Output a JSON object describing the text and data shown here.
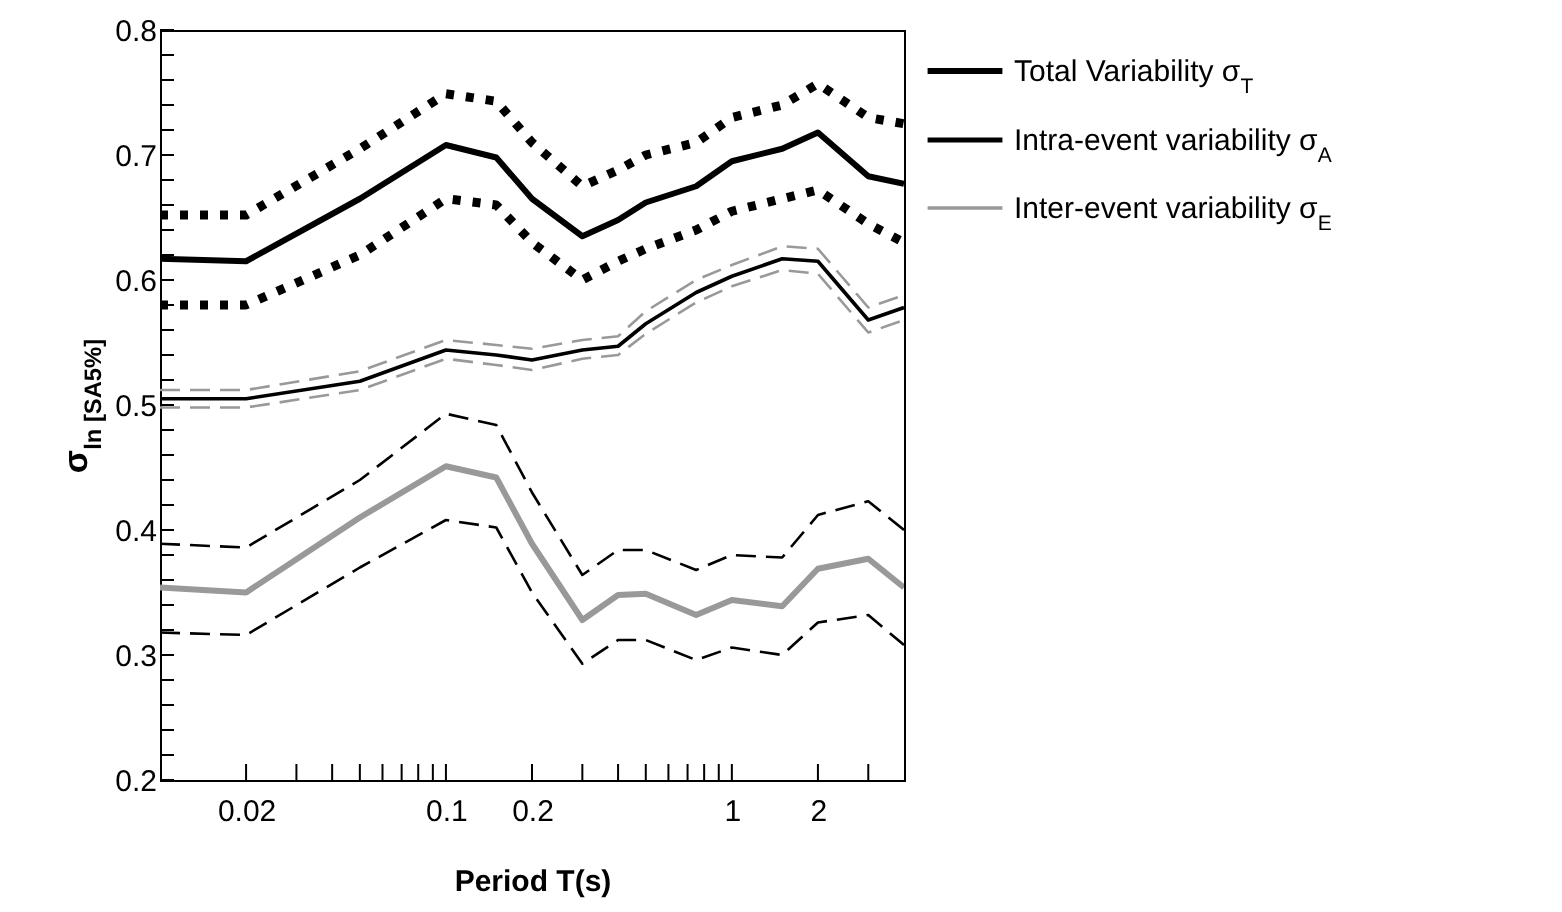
{
  "chart_data": {
    "type": "line",
    "xlabel": "Period T(s)",
    "ylabel": "σ$_{ln [SA5%]}$",
    "x": [
      0.01,
      0.02,
      0.05,
      0.1,
      0.15,
      0.2,
      0.3,
      0.4,
      0.5,
      0.75,
      1,
      1.5,
      2,
      3,
      4
    ],
    "series": [
      {
        "name": "Total Variability σ$_{T}$",
        "color": "#000000",
        "values": [
          0.617,
          0.615,
          0.665,
          0.708,
          0.698,
          0.665,
          0.635,
          0.648,
          0.662,
          0.675,
          0.695,
          0.705,
          0.718,
          0.683,
          0.677
        ]
      },
      {
        "name": "Intra-event variability σ$_{A}$",
        "color": "#000000",
        "values": [
          0.505,
          0.505,
          0.519,
          0.544,
          0.54,
          0.536,
          0.544,
          0.547,
          0.565,
          0.59,
          0.603,
          0.617,
          0.615,
          0.568,
          0.578
        ]
      },
      {
        "name": "Inter-event variability σ$_{E}$",
        "color": "#999999",
        "values": [
          0.354,
          0.35,
          0.41,
          0.451,
          0.442,
          0.389,
          0.328,
          0.348,
          0.349,
          0.332,
          0.344,
          0.339,
          0.369,
          0.377,
          0.354
        ]
      },
      {
        "color": "#000000",
        "line_style": "dotted",
        "values": [
          0.652,
          0.652,
          0.705,
          0.749,
          0.743,
          0.71,
          0.675,
          0.688,
          0.7,
          0.71,
          0.73,
          0.74,
          0.757,
          0.73,
          0.725
        ]
      },
      {
        "color": "#000000",
        "line_style": "dotted",
        "values": [
          0.58,
          0.58,
          0.62,
          0.665,
          0.66,
          0.63,
          0.6,
          0.615,
          0.625,
          0.64,
          0.655,
          0.665,
          0.672,
          0.645,
          0.63
        ]
      },
      {
        "color": "#999999",
        "line_style": "dashed",
        "values": [
          0.512,
          0.512,
          0.527,
          0.552,
          0.548,
          0.545,
          0.552,
          0.555,
          0.575,
          0.6,
          0.612,
          0.627,
          0.625,
          0.578,
          0.588
        ]
      },
      {
        "color": "#999999",
        "line_style": "dashed",
        "values": [
          0.498,
          0.498,
          0.512,
          0.537,
          0.532,
          0.528,
          0.537,
          0.54,
          0.557,
          0.582,
          0.595,
          0.608,
          0.605,
          0.558,
          0.568
        ]
      },
      {
        "color": "#000000",
        "line_style": "dashed",
        "values": [
          0.389,
          0.386,
          0.44,
          0.493,
          0.484,
          0.43,
          0.364,
          0.384,
          0.384,
          0.368,
          0.38,
          0.378,
          0.412,
          0.423,
          0.4
        ]
      },
      {
        "color": "#000000",
        "line_style": "dashed",
        "values": [
          0.318,
          0.316,
          0.37,
          0.408,
          0.402,
          0.35,
          0.293,
          0.312,
          0.312,
          0.296,
          0.306,
          0.3,
          0.326,
          0.332,
          0.308
        ]
      }
    ],
    "log": "x",
    "xlim": [
      0.01,
      4
    ],
    "xticks": [
      0.02,
      {
        "value": 0.03,
        "label": null
      },
      {
        "value": 0.04,
        "label": null
      },
      {
        "value": 0.05,
        "label": null
      },
      {
        "value": 0.06,
        "label": null
      },
      {
        "value": 0.07,
        "label": null
      },
      {
        "value": 0.08,
        "label": null
      },
      {
        "value": 0.09,
        "label": null
      },
      0.1,
      0.2,
      {
        "value": 0.3,
        "label": null
      },
      {
        "value": 0.4,
        "label": null
      },
      {
        "value": 0.5,
        "label": null
      },
      {
        "value": 0.6,
        "label": null
      },
      {
        "value": 0.7,
        "label": null
      },
      {
        "value": 0.8,
        "label": null
      },
      {
        "value": 0.9,
        "label": null
      },
      1,
      2,
      {
        "value": 3,
        "label": null
      }
    ],
    "ylim": [
      0.2,
      0.8
    ],
    "yticks": [
      0.2,
      {
        "value": 0.22,
        "label": null
      },
      {
        "value": 0.24,
        "label": null
      },
      {
        "value": 0.26,
        "label": null
      },
      {
        "value": 0.28,
        "label": null
      },
      0.3,
      {
        "value": 0.32,
        "label": null
      },
      {
        "value": 0.34,
        "label": null
      },
      {
        "value": 0.36,
        "label": null
      },
      {
        "value": 0.38,
        "label": null
      },
      0.4,
      {
        "value": 0.42,
        "label": null
      },
      {
        "value": 0.44,
        "label": null
      },
      {
        "value": 0.46,
        "label": null
      },
      {
        "value": 0.48,
        "label": null
      },
      0.5,
      {
        "value": 0.52,
        "label": null
      },
      {
        "value": 0.54,
        "label": null
      },
      {
        "value": 0.56,
        "label": null
      },
      {
        "value": 0.58,
        "label": null
      },
      0.6,
      {
        "value": 0.62,
        "label": null
      },
      {
        "value": 0.64,
        "label": null
      },
      {
        "value": 0.66,
        "label": null
      },
      {
        "value": 0.68,
        "label": null
      },
      0.7,
      {
        "value": 0.72,
        "label": null
      },
      {
        "value": 0.74,
        "label": null
      },
      {
        "value": 0.76,
        "label": null
      },
      {
        "value": 0.78,
        "label": null
      },
      0.8
    ],
    "grid": false,
    "legend": "right"
  }
}
